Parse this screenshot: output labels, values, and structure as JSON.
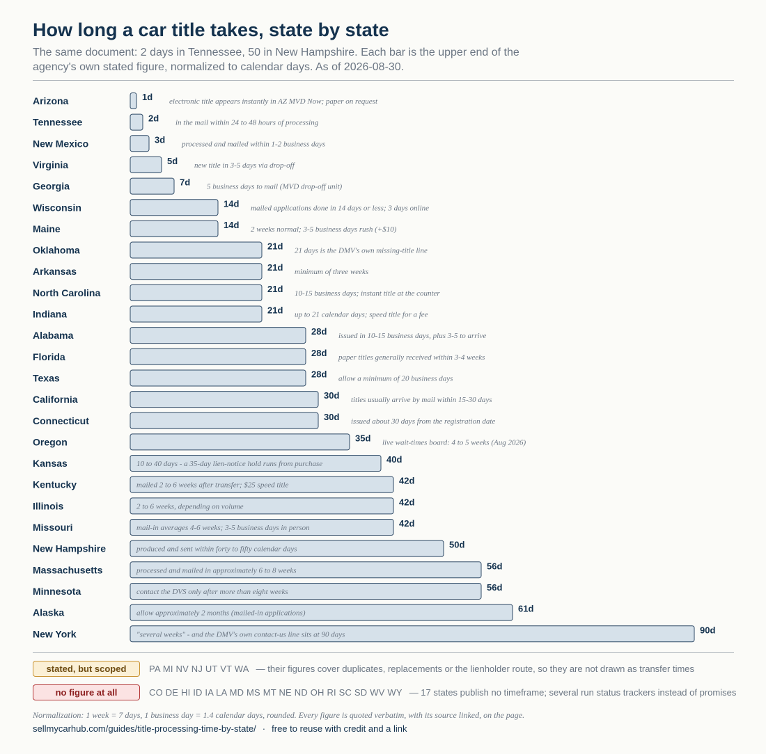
{
  "header": {
    "title": "How long a car title takes, state by state",
    "subtitle": "The same document: 2 days in Tennessee, 50 in New Hampshire. Each bar is the upper end of the agency's own stated figure, normalized to calendar days. As of 2026-08-30."
  },
  "chart_data": {
    "type": "bar",
    "orientation": "horizontal",
    "value_suffix": "d",
    "unit": "calendar days",
    "xlim": [
      0,
      90
    ],
    "grid": false,
    "colors": {
      "bar_fill": "#d6e1ea",
      "bar_stroke": "#2f4a66",
      "label": "#14324e",
      "note": "#6b7683"
    },
    "rows": [
      {
        "state": "Arizona",
        "days": 1,
        "note": "electronic title appears instantly in AZ MVD Now; paper on request"
      },
      {
        "state": "Tennessee",
        "days": 2,
        "note": "in the mail within 24 to 48 hours of processing"
      },
      {
        "state": "New Mexico",
        "days": 3,
        "note": "processed and mailed within 1-2 business days"
      },
      {
        "state": "Virginia",
        "days": 5,
        "note": "new title in 3-5 days via drop-off"
      },
      {
        "state": "Georgia",
        "days": 7,
        "note": "5 business days to mail (MVD drop-off unit)"
      },
      {
        "state": "Wisconsin",
        "days": 14,
        "note": "mailed applications done in 14 days or less; 3 days online"
      },
      {
        "state": "Maine",
        "days": 14,
        "note": "2 weeks normal; 3-5 business days rush (+$10)"
      },
      {
        "state": "Oklahoma",
        "days": 21,
        "note": "21 days is the DMV's own missing-title line"
      },
      {
        "state": "Arkansas",
        "days": 21,
        "note": "minimum of three weeks"
      },
      {
        "state": "North Carolina",
        "days": 21,
        "note": "10-15 business days; instant title at the counter"
      },
      {
        "state": "Indiana",
        "days": 21,
        "note": "up to 21 calendar days; speed title for a fee"
      },
      {
        "state": "Alabama",
        "days": 28,
        "note": "issued in 10-15 business days, plus 3-5 to arrive"
      },
      {
        "state": "Florida",
        "days": 28,
        "note": "paper titles generally received within 3-4 weeks"
      },
      {
        "state": "Texas",
        "days": 28,
        "note": "allow a minimum of 20 business days"
      },
      {
        "state": "California",
        "days": 30,
        "note": "titles usually arrive by mail within 15-30 days"
      },
      {
        "state": "Connecticut",
        "days": 30,
        "note": "issued about 30 days from the registration date"
      },
      {
        "state": "Oregon",
        "days": 35,
        "note": "live wait-times board: 4 to 5 weeks (Aug 2026)"
      },
      {
        "state": "Kansas",
        "days": 40,
        "note": "10 to 40 days - a 35-day lien-notice hold runs from purchase"
      },
      {
        "state": "Kentucky",
        "days": 42,
        "note": "mailed 2 to 6 weeks after transfer; $25 speed title"
      },
      {
        "state": "Illinois",
        "days": 42,
        "note": "2 to 6 weeks, depending on volume"
      },
      {
        "state": "Missouri",
        "days": 42,
        "note": "mail-in averages 4-6 weeks; 3-5 business days in person"
      },
      {
        "state": "New Hampshire",
        "days": 50,
        "note": "produced and sent within forty to fifty calendar days"
      },
      {
        "state": "Massachusetts",
        "days": 56,
        "note": "processed and mailed in approximately 6 to 8 weeks"
      },
      {
        "state": "Minnesota",
        "days": 56,
        "note": "contact the DVS only after more than eight weeks"
      },
      {
        "state": "Alaska",
        "days": 61,
        "note": "allow approximately 2 months (mailed-in applications)"
      },
      {
        "state": "New York",
        "days": 90,
        "note": "\"several weeks\" - and the DMV's own contact-us line sits at 90 days"
      }
    ]
  },
  "legend": {
    "scoped": {
      "label": "stated, but scoped",
      "states": "PA MI NV NJ UT VT WA",
      "text": "— their figures cover duplicates, replacements or the lienholder route, so they are not drawn as transfer times",
      "fill": "#fbf0d6",
      "border": "#c99436"
    },
    "none": {
      "label": "no figure at all",
      "states": "CO DE HI ID IA LA MD MS MT NE ND OH RI SC SD WV WY",
      "text": "— 17 states publish no timeframe; several run status trackers instead of promises",
      "fill": "#fbe3e3",
      "border": "#b43a3a"
    }
  },
  "footer": {
    "note": "Normalization: 1 week = 7 days, 1 business day = 1.4 calendar days, rounded. Every figure is quoted verbatim, with its source linked, on the page.",
    "url": "sellmycarhub.com/guides/title-processing-time-by-state/",
    "separator": "·",
    "credit": "free to reuse with credit and a link"
  }
}
